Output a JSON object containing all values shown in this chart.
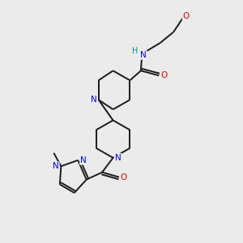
{
  "background_color": "#ebebeb",
  "bond_color": "#1a1a1a",
  "N_color": "#0000ee",
  "O_color": "#dd0000",
  "H_color": "#008888",
  "line_width": 1.4,
  "figsize": [
    3.0,
    3.0
  ],
  "dpi": 100,
  "xlim": [
    0,
    10
  ],
  "ylim": [
    0,
    10
  ],
  "font_size": 7.5
}
